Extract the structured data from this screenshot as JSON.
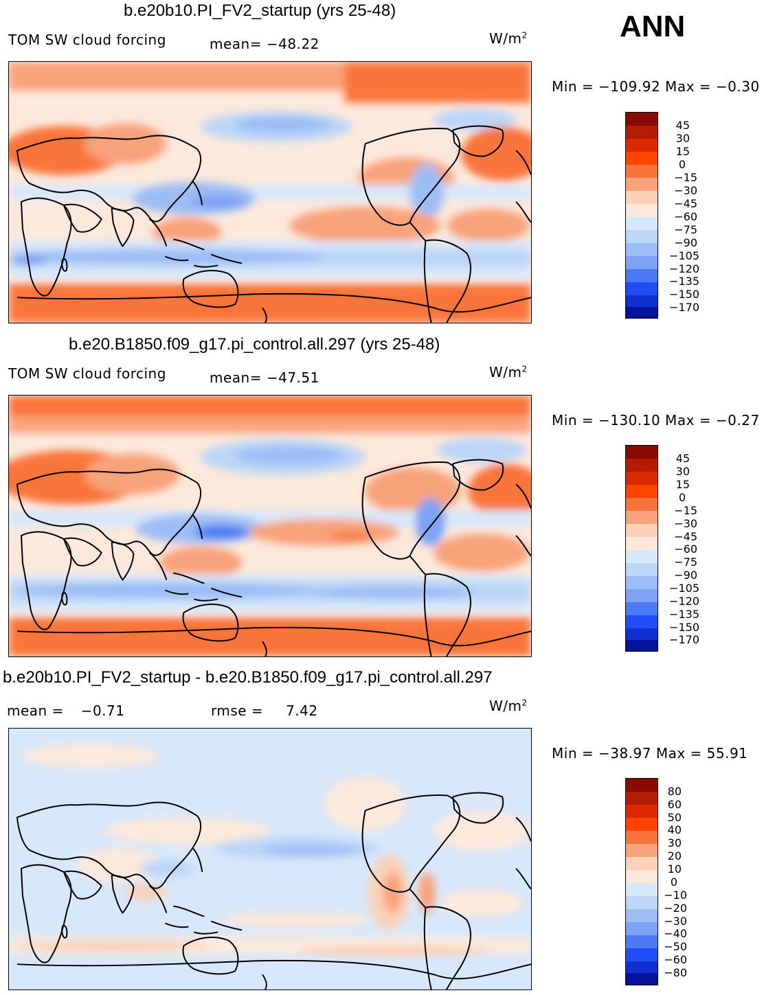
{
  "ann_label": "ANN",
  "units_base": "W/m",
  "units_exp": "2",
  "panels": [
    {
      "title": "b.e20b10.PI_FV2_startup (yrs 25-48)",
      "left_label": "TOM SW cloud forcing",
      "stat_label": "mean=",
      "stat_value": "−48.22",
      "minmax": "Min  =  −109.92  Max  =    −0.30",
      "colorbar_labels": [
        "45",
        "30",
        "15",
        "0",
        "−15",
        "−30",
        "−45",
        "−60",
        "−75",
        "−90",
        "−105",
        "−120",
        "−135",
        "−150",
        "−170"
      ]
    },
    {
      "title": "b.e20.B1850.f09_g17.pi_control.all.297 (yrs 25-48)",
      "left_label": "TOM SW cloud forcing",
      "stat_label": "mean=",
      "stat_value": "−47.51",
      "minmax": "Min  =  −130.10  Max  =    −0.27",
      "colorbar_labels": [
        "45",
        "30",
        "15",
        "0",
        "−15",
        "−30",
        "−45",
        "−60",
        "−75",
        "−90",
        "−105",
        "−120",
        "−135",
        "−150",
        "−170"
      ]
    },
    {
      "title": "b.e20b10.PI_FV2_startup - b.e20.B1850.f09_g17.pi_control.all.297",
      "mean_label": "mean  =",
      "mean_value": "−0.71",
      "rmse_label": "rmse  =",
      "rmse_value": "7.42",
      "minmax": "Min  =  −38.97  Max  =    55.91",
      "colorbar_labels": [
        "80",
        "60",
        "50",
        "40",
        "30",
        "20",
        "10",
        "0",
        "−10",
        "−20",
        "−30",
        "−40",
        "−50",
        "−60",
        "−80"
      ]
    }
  ],
  "colors": {
    "field_palette": [
      "#8b0a00",
      "#b31c00",
      "#d92a00",
      "#ff4400",
      "#f9743b",
      "#f9a37c",
      "#fbd2b8",
      "#fce9dc",
      "#d8e8fb",
      "#bcd6f8",
      "#9dbdf5",
      "#7ea2f5",
      "#4a7af4",
      "#1f4ef5",
      "#0f2fd0",
      "#05149a"
    ],
    "diff_palette": [
      "#8b0a00",
      "#b31c00",
      "#d92a00",
      "#ff4400",
      "#f9743b",
      "#f9a37c",
      "#fbd2b8",
      "#fce9dc",
      "#d8e8fb",
      "#bcd6f8",
      "#9dbdf5",
      "#7ea2f5",
      "#4a7af4",
      "#1f4ef5",
      "#0f2fd0",
      "#05149a"
    ]
  }
}
